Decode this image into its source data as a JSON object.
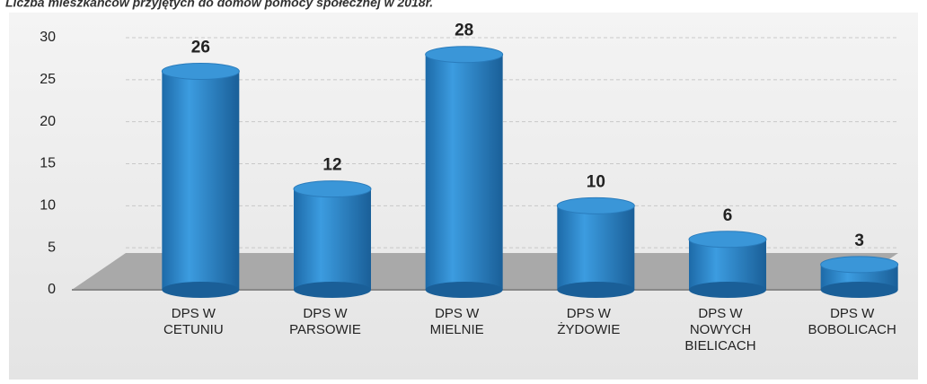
{
  "chart_data": {
    "type": "bar",
    "title": "Liczba mieszkańców przyjętych do domów pomocy społecznej w 2018r.",
    "categories": [
      "DPS W CETUNIU",
      "DPS W PARSOWIE",
      "DPS W MIELNIE",
      "DPS W ŻYDOWIE",
      "DPS W NOWYCH BIELICACH",
      "DPS W BOBOLICACH"
    ],
    "values": [
      26,
      12,
      28,
      10,
      6,
      3
    ],
    "color": "#2e86c8",
    "ylim": [
      0,
      30
    ],
    "yticks": [
      0,
      5,
      10,
      15,
      20,
      25,
      30
    ],
    "grid": true
  }
}
